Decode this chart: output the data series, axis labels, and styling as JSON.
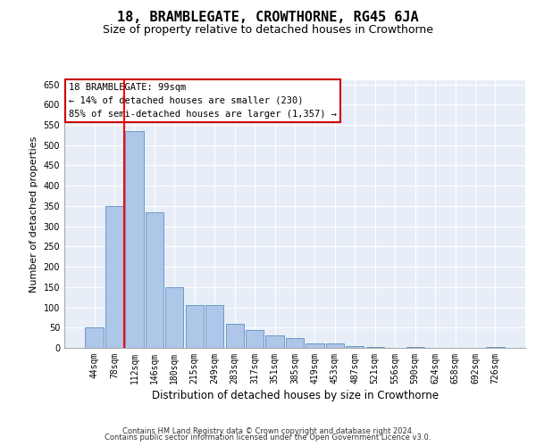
{
  "title": "18, BRAMBLEGATE, CROWTHORNE, RG45 6JA",
  "subtitle": "Size of property relative to detached houses in Crowthorne",
  "xlabel": "Distribution of detached houses by size in Crowthorne",
  "ylabel": "Number of detached properties",
  "categories": [
    "44sqm",
    "78sqm",
    "112sqm",
    "146sqm",
    "180sqm",
    "215sqm",
    "249sqm",
    "283sqm",
    "317sqm",
    "351sqm",
    "385sqm",
    "419sqm",
    "453sqm",
    "487sqm",
    "521sqm",
    "556sqm",
    "590sqm",
    "624sqm",
    "658sqm",
    "692sqm",
    "726sqm"
  ],
  "values": [
    50,
    350,
    535,
    335,
    150,
    105,
    105,
    60,
    45,
    30,
    25,
    10,
    10,
    5,
    2,
    0,
    3,
    1,
    0,
    0,
    2
  ],
  "bar_color": "#aec6e8",
  "bar_edge_color": "#5a8fc2",
  "bg_color": "#e8eef8",
  "grid_color": "#ffffff",
  "red_line_x": 1.5,
  "annotation_text": "18 BRAMBLEGATE: 99sqm\n← 14% of detached houses are smaller (230)\n85% of semi-detached houses are larger (1,357) →",
  "annotation_box_color": "#ffffff",
  "annotation_border_color": "#cc0000",
  "ylim": [
    0,
    660
  ],
  "yticks": [
    0,
    50,
    100,
    150,
    200,
    250,
    300,
    350,
    400,
    450,
    500,
    550,
    600,
    650
  ],
  "footer1": "Contains HM Land Registry data © Crown copyright and database right 2024.",
  "footer2": "Contains public sector information licensed under the Open Government Licence v3.0.",
  "title_fontsize": 11,
  "subtitle_fontsize": 9,
  "annotation_fontsize": 7.5,
  "ylabel_fontsize": 8,
  "xlabel_fontsize": 8.5,
  "tick_fontsize": 7,
  "footer_fontsize": 6
}
